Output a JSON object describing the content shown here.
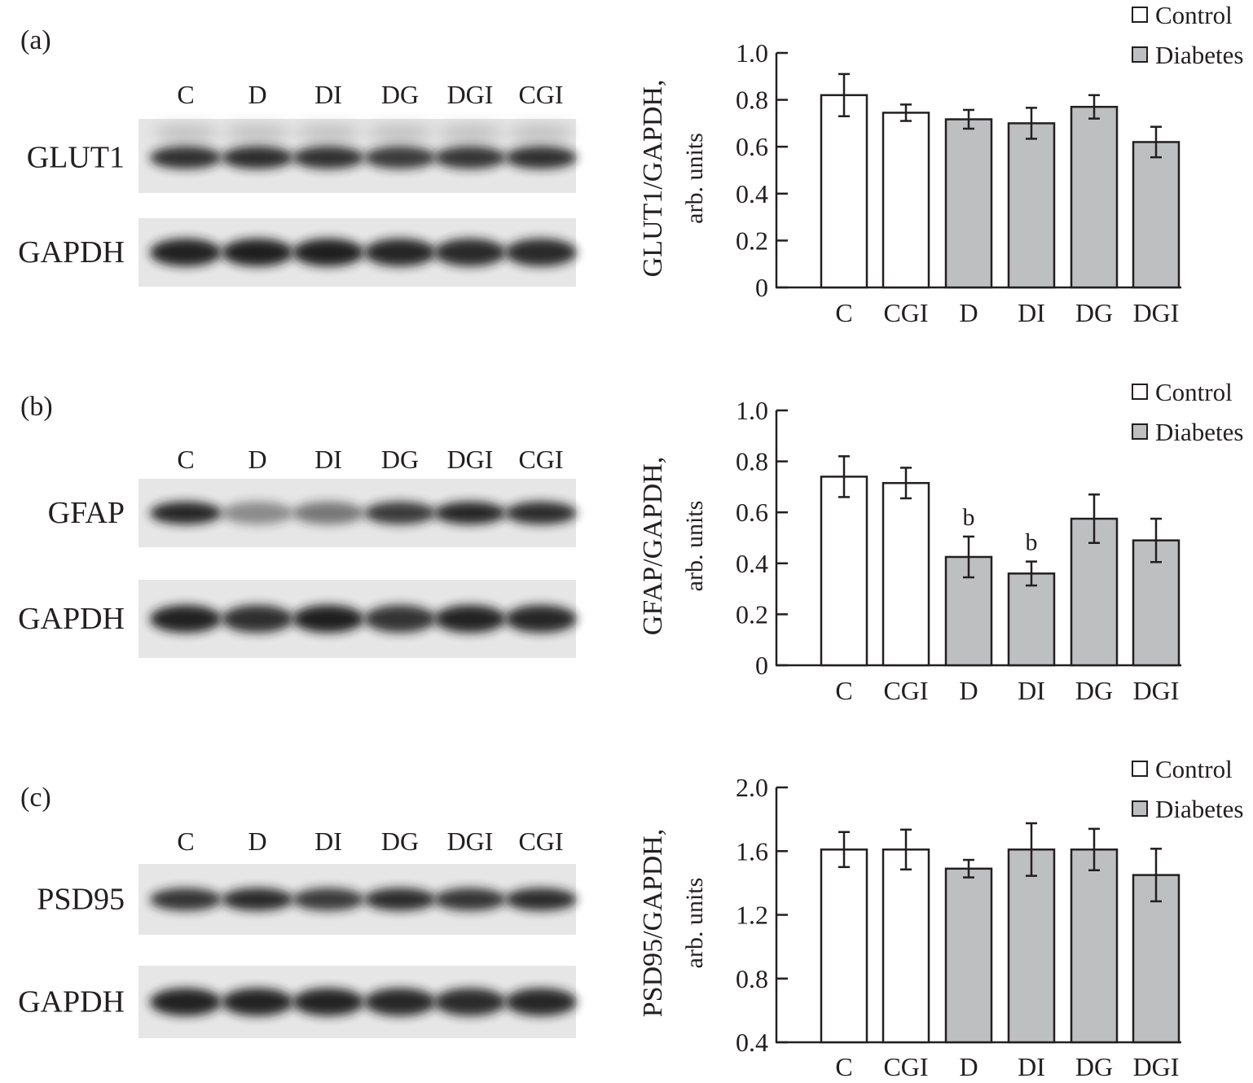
{
  "colors": {
    "control": "#ffffff",
    "diabetes": "#bebfc1",
    "axis": "#231f20",
    "blot_bg": "#e6e6e6",
    "band": "#1f1f1f"
  },
  "lanes": [
    "C",
    "D",
    "DI",
    "DG",
    "DGI",
    "CGI"
  ],
  "legend": [
    "Control",
    "Diabetes"
  ],
  "panels": [
    {
      "label": "(a)",
      "protein": "GLUT1",
      "loading": "GAPDH"
    },
    {
      "label": "(b)",
      "protein": "GFAP",
      "loading": "GAPDH"
    },
    {
      "label": "(c)",
      "protein": "PSD95",
      "loading": "GAPDH"
    }
  ],
  "chart_data": [
    {
      "type": "bar",
      "ylabel": [
        "GLUT1/GAPDH,",
        "arb. units"
      ],
      "categories": [
        "C",
        "CGI",
        "D",
        "DI",
        "DG",
        "DGI"
      ],
      "groups": [
        "Control",
        "Control",
        "Diabetes",
        "Diabetes",
        "Diabetes",
        "Diabetes"
      ],
      "values": [
        0.82,
        0.745,
        0.717,
        0.7,
        0.77,
        0.62
      ],
      "errors": [
        0.09,
        0.035,
        0.04,
        0.066,
        0.05,
        0.065
      ],
      "annotations": [
        "",
        "",
        "",
        "",
        "",
        ""
      ],
      "ylim": [
        0,
        1.0
      ],
      "yticks": [
        "0",
        "0.2",
        "0.4",
        "0.6",
        "0.8",
        "1.0"
      ],
      "legend_position": "top-right"
    },
    {
      "type": "bar",
      "ylabel": [
        "GFAP/GAPDH,",
        "arb. units"
      ],
      "categories": [
        "C",
        "CGI",
        "D",
        "DI",
        "DG",
        "DGI"
      ],
      "groups": [
        "Control",
        "Control",
        "Diabetes",
        "Diabetes",
        "Diabetes",
        "Diabetes"
      ],
      "values": [
        0.74,
        0.715,
        0.425,
        0.36,
        0.575,
        0.49
      ],
      "errors": [
        0.08,
        0.06,
        0.08,
        0.047,
        0.095,
        0.085
      ],
      "annotations": [
        "",
        "",
        "b",
        "b",
        "",
        ""
      ],
      "ylim": [
        0,
        1.0
      ],
      "yticks": [
        "0",
        "0.2",
        "0.4",
        "0.6",
        "0.8",
        "1.0"
      ],
      "legend_position": "top-right"
    },
    {
      "type": "bar",
      "ylabel": [
        "PSD95/GAPDH,",
        "arb. units"
      ],
      "categories": [
        "C",
        "CGI",
        "D",
        "DI",
        "DG",
        "DGI"
      ],
      "groups": [
        "Control",
        "Control",
        "Diabetes",
        "Diabetes",
        "Diabetes",
        "Diabetes"
      ],
      "values": [
        1.61,
        1.61,
        1.49,
        1.61,
        1.61,
        1.45
      ],
      "errors": [
        0.11,
        0.125,
        0.055,
        0.165,
        0.13,
        0.165
      ],
      "annotations": [
        "",
        "",
        "",
        "",
        "",
        ""
      ],
      "ylim": [
        0.4,
        2.0
      ],
      "yticks": [
        "0.4",
        "0.8",
        "1.2",
        "1.6",
        "2.0"
      ],
      "legend_position": "top-right"
    }
  ]
}
